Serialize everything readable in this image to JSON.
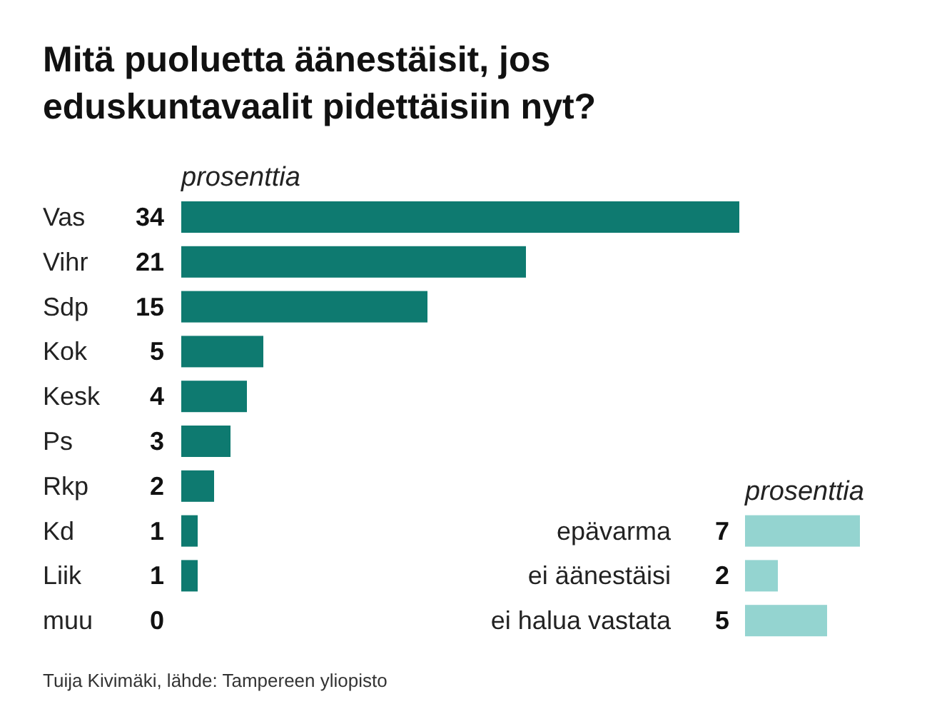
{
  "chart_data": [
    {
      "type": "bar",
      "orientation": "horizontal",
      "title": "Mitä puoluetta äänestäisit, jos eduskuntavaalit pidettäisiin nyt?",
      "xlabel": "prosenttia",
      "categories": [
        "Vas",
        "Vihr",
        "Sdp",
        "Kok",
        "Kesk",
        "Ps",
        "Rkp",
        "Kd",
        "Liik",
        "muu"
      ],
      "values": [
        34,
        21,
        15,
        5,
        4,
        3,
        2,
        1,
        1,
        0
      ],
      "color": "#0e7a70",
      "data_labels": true,
      "annotations": [
        "Tuija Kivimäki, lähde: Tampereen yliopisto"
      ]
    },
    {
      "type": "bar",
      "orientation": "horizontal",
      "xlabel": "prosenttia",
      "categories": [
        "epävarma",
        "ei äänestäisi",
        "ei halua vastata"
      ],
      "values": [
        7,
        2,
        5
      ],
      "color": "#94d4d0",
      "data_labels": true
    }
  ]
}
